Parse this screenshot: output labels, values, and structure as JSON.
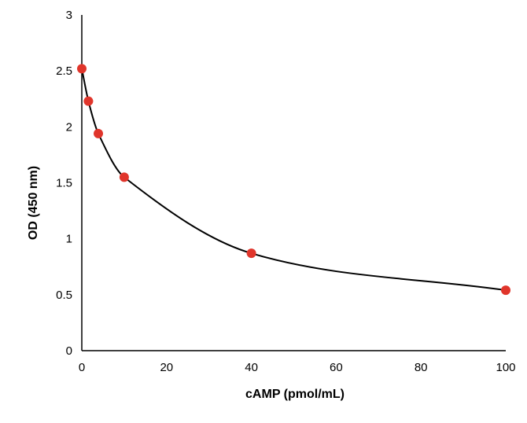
{
  "chart_data": {
    "type": "scatter",
    "title": "",
    "xlabel": "cAMP (pmol/mL)",
    "ylabel": "OD (450 nm)",
    "xlim": [
      0,
      100
    ],
    "ylim": [
      0,
      3
    ],
    "x_ticks": [
      0,
      20,
      40,
      60,
      80,
      100
    ],
    "y_ticks": [
      0,
      0.5,
      1,
      1.5,
      2,
      2.5,
      3
    ],
    "x_tick_labels": [
      "0",
      "20",
      "40",
      "60",
      "80",
      "100"
    ],
    "y_tick_labels": [
      "0",
      "0.5",
      "1",
      "1.5",
      "2",
      "2.5",
      "3"
    ],
    "grid": false,
    "legend": "none",
    "series": [
      {
        "x": [
          0,
          1.56,
          3.9,
          10,
          40,
          100
        ],
        "y": [
          2.52,
          2.23,
          1.94,
          1.55,
          0.87,
          0.54
        ],
        "marker_color": "#e0352b",
        "fit_curve": true,
        "curve_color": "#000000"
      }
    ]
  }
}
